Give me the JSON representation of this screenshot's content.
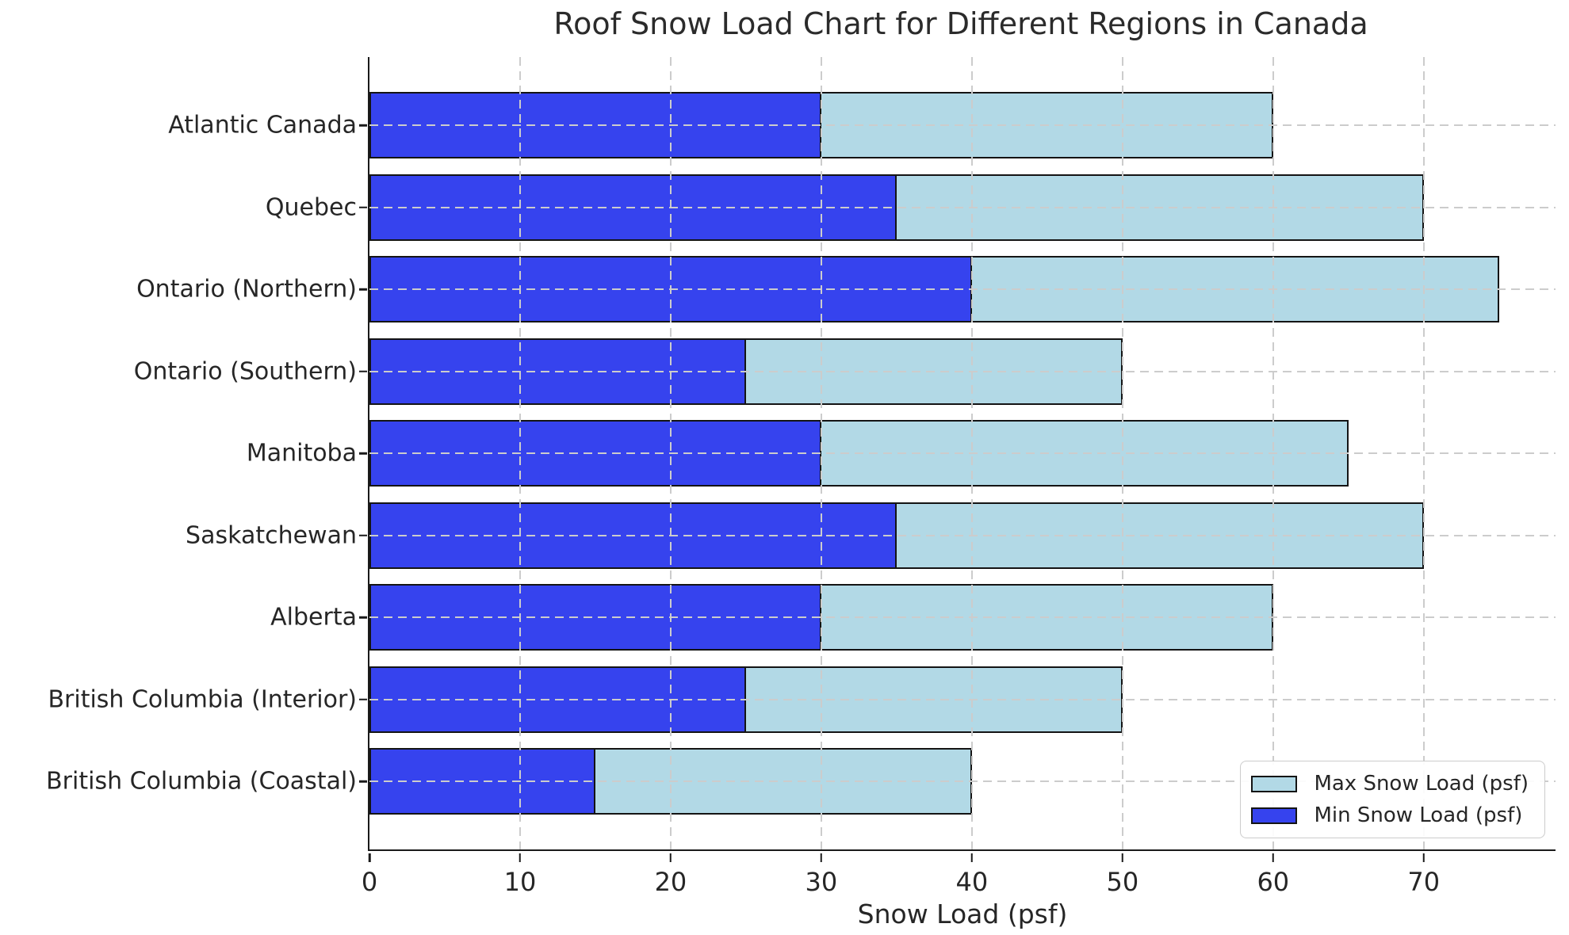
{
  "title": "Roof Snow Load Chart for Different Regions in Canada",
  "chart_data": {
    "type": "bar",
    "orientation": "horizontal",
    "title": "Roof Snow Load Chart for Different Regions in Canada",
    "categories": [
      "Atlantic Canada",
      "Quebec",
      "Ontario (Northern)",
      "Ontario (Southern)",
      "Manitoba",
      "Saskatchewan",
      "Alberta",
      "British Columbia (Interior)",
      "British Columbia (Coastal)"
    ],
    "series": [
      {
        "name": "Max Snow Load (psf)",
        "color": "#b2d9e6",
        "values": [
          60,
          70,
          75,
          50,
          65,
          70,
          60,
          50,
          40
        ]
      },
      {
        "name": "Min Snow Load (psf)",
        "color": "#3643ee",
        "values": [
          30,
          35,
          40,
          25,
          30,
          35,
          30,
          25,
          15
        ]
      }
    ],
    "xlabel": "Snow Load (psf)",
    "ylabel": "",
    "xlim": [
      0,
      78.75
    ],
    "x_ticks": [
      0,
      10,
      20,
      30,
      40,
      50,
      60,
      70
    ],
    "grid": true,
    "grid_color": "#cccccc",
    "bar_edge_color": "#141414",
    "legend_position": "lower right"
  }
}
